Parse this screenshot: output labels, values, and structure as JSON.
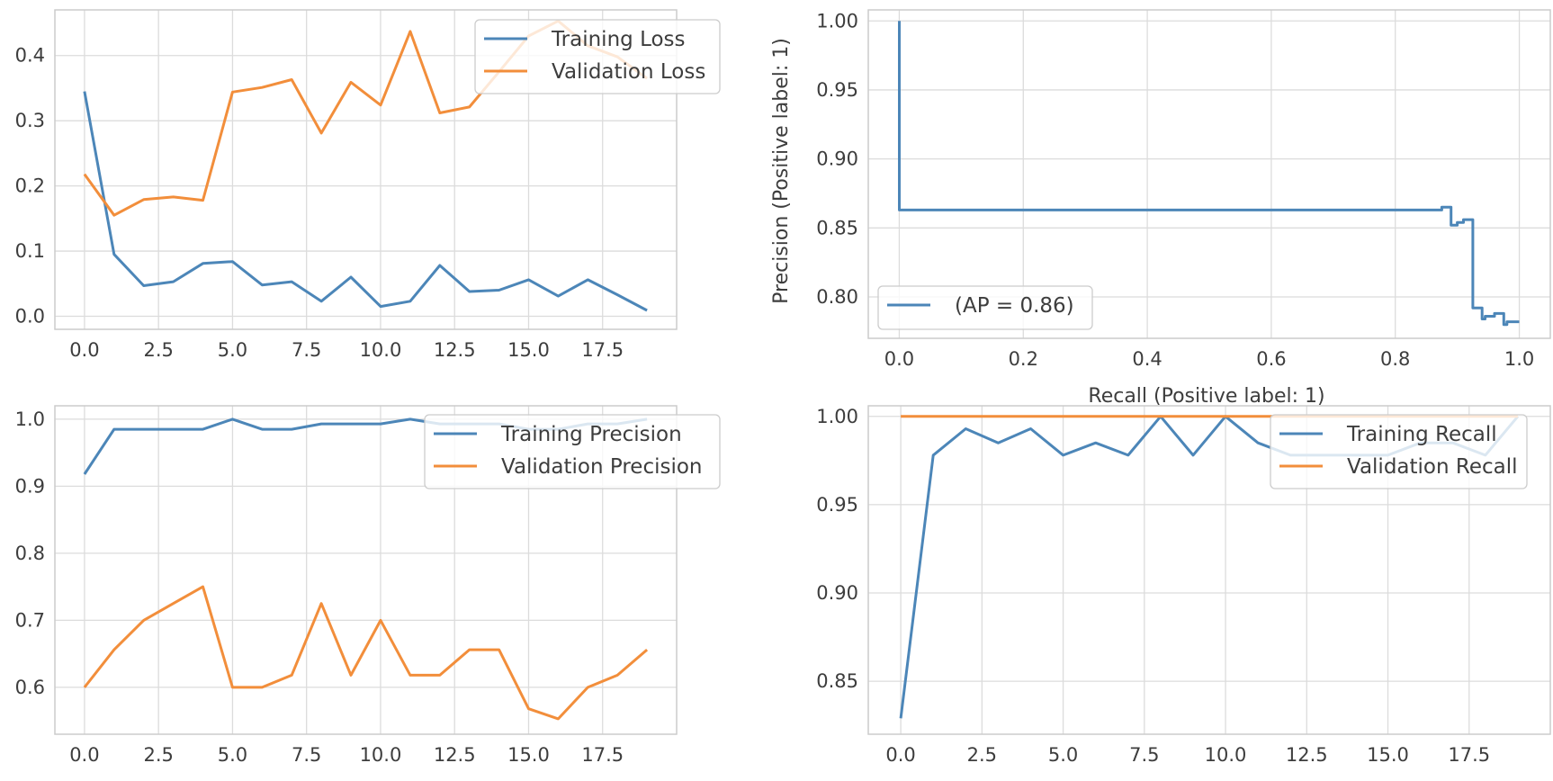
{
  "colors": {
    "blue": "#4c86b8",
    "orange": "#f28e3b",
    "grid": "#dcdcdc",
    "frame": "#cccccc"
  },
  "chart_data": [
    {
      "type": "line",
      "x": [
        0,
        1,
        2,
        3,
        4,
        5,
        6,
        7,
        8,
        9,
        10,
        11,
        12,
        13,
        14,
        15,
        16,
        17,
        18,
        19
      ],
      "xlim": [
        -1,
        20
      ],
      "ylim": [
        -0.02,
        0.47
      ],
      "xticks": [
        "0.0",
        "2.5",
        "5.0",
        "7.5",
        "10.0",
        "12.5",
        "15.0",
        "17.5"
      ],
      "xtick_values": [
        0,
        2.5,
        5,
        7.5,
        10,
        12.5,
        15,
        17.5
      ],
      "yticks": [
        "0.0",
        "0.1",
        "0.2",
        "0.3",
        "0.4"
      ],
      "ytick_values": [
        0,
        0.1,
        0.2,
        0.3,
        0.4
      ],
      "xlabel": "",
      "ylabel": "",
      "grid": true,
      "legend": "top-right",
      "series": [
        {
          "name": "Training Loss",
          "color": "blue",
          "values": [
            0.345,
            0.095,
            0.047,
            0.053,
            0.081,
            0.084,
            0.048,
            0.053,
            0.023,
            0.06,
            0.015,
            0.023,
            0.078,
            0.038,
            0.04,
            0.056,
            0.031,
            0.056,
            0.033,
            0.009
          ]
        },
        {
          "name": "Validation Loss",
          "color": "orange",
          "values": [
            0.218,
            0.155,
            0.179,
            0.183,
            0.178,
            0.344,
            0.351,
            0.363,
            0.281,
            0.359,
            0.324,
            0.437,
            0.312,
            0.321,
            0.375,
            0.43,
            0.453,
            0.415,
            0.398,
            0.365
          ]
        }
      ]
    },
    {
      "type": "line",
      "step": true,
      "xlim": [
        -0.05,
        1.05
      ],
      "ylim": [
        0.77,
        1.008
      ],
      "xticks": [
        "0.0",
        "0.2",
        "0.4",
        "0.6",
        "0.8",
        "1.0"
      ],
      "xtick_values": [
        0,
        0.2,
        0.4,
        0.6,
        0.8,
        1.0
      ],
      "yticks": [
        "0.80",
        "0.85",
        "0.90",
        "0.95",
        "1.00"
      ],
      "ytick_values": [
        0.8,
        0.85,
        0.9,
        0.95,
        1.0
      ],
      "xlabel": "Recall (Positive label: 1)",
      "ylabel": "Precision (Positive label: 1)",
      "grid": true,
      "legend": "bottom-left",
      "series": [
        {
          "name": "(AP = 0.86)",
          "color": "blue",
          "points": [
            [
              0,
              1.0
            ],
            [
              0,
              0.863
            ],
            [
              0.875,
              0.863
            ],
            [
              0.875,
              0.865
            ],
            [
              0.89,
              0.865
            ],
            [
              0.89,
              0.852
            ],
            [
              0.9,
              0.852
            ],
            [
              0.9,
              0.854
            ],
            [
              0.91,
              0.854
            ],
            [
              0.91,
              0.856
            ],
            [
              0.925,
              0.856
            ],
            [
              0.925,
              0.792
            ],
            [
              0.94,
              0.792
            ],
            [
              0.94,
              0.784
            ],
            [
              0.945,
              0.784
            ],
            [
              0.945,
              0.786
            ],
            [
              0.96,
              0.786
            ],
            [
              0.96,
              0.788
            ],
            [
              0.975,
              0.788
            ],
            [
              0.975,
              0.78
            ],
            [
              0.98,
              0.78
            ],
            [
              0.98,
              0.782
            ],
            [
              1.0,
              0.782
            ]
          ]
        }
      ]
    },
    {
      "type": "line",
      "x": [
        0,
        1,
        2,
        3,
        4,
        5,
        6,
        7,
        8,
        9,
        10,
        11,
        12,
        13,
        14,
        15,
        16,
        17,
        18,
        19
      ],
      "xlim": [
        -1,
        20
      ],
      "ylim": [
        0.53,
        1.02
      ],
      "xticks": [
        "0.0",
        "2.5",
        "5.0",
        "7.5",
        "10.0",
        "12.5",
        "15.0",
        "17.5"
      ],
      "xtick_values": [
        0,
        2.5,
        5,
        7.5,
        10,
        12.5,
        15,
        17.5
      ],
      "yticks": [
        "0.6",
        "0.7",
        "0.8",
        "0.9",
        "1.0"
      ],
      "ytick_values": [
        0.6,
        0.7,
        0.8,
        0.9,
        1.0
      ],
      "xlabel": "",
      "ylabel": "",
      "grid": true,
      "legend": "top-right",
      "series": [
        {
          "name": "Training Precision",
          "color": "blue",
          "values": [
            0.918,
            0.985,
            0.985,
            0.985,
            0.985,
            1.0,
            0.985,
            0.985,
            0.993,
            0.993,
            0.993,
            1.0,
            0.993,
            0.993,
            0.993,
            0.985,
            0.985,
            0.993,
            0.993,
            1.0
          ]
        },
        {
          "name": "Validation Precision",
          "color": "orange",
          "values": [
            0.6,
            0.656,
            0.7,
            0.725,
            0.75,
            0.6,
            0.6,
            0.618,
            0.725,
            0.618,
            0.7,
            0.618,
            0.618,
            0.656,
            0.656,
            0.568,
            0.553,
            0.6,
            0.618,
            0.656
          ]
        }
      ]
    },
    {
      "type": "line",
      "x": [
        0,
        1,
        2,
        3,
        4,
        5,
        6,
        7,
        8,
        9,
        10,
        11,
        12,
        13,
        14,
        15,
        16,
        17,
        18,
        19
      ],
      "xlim": [
        -1,
        20
      ],
      "ylim": [
        0.82,
        1.006
      ],
      "xticks": [
        "0.0",
        "2.5",
        "5.0",
        "7.5",
        "10.0",
        "12.5",
        "15.0",
        "17.5"
      ],
      "xtick_values": [
        0,
        2.5,
        5,
        7.5,
        10,
        12.5,
        15,
        17.5
      ],
      "yticks": [
        "0.85",
        "0.90",
        "0.95",
        "1.00"
      ],
      "ytick_values": [
        0.85,
        0.9,
        0.95,
        1.0
      ],
      "xlabel": "",
      "ylabel": "",
      "grid": true,
      "legend": "top-right",
      "series": [
        {
          "name": "Training Recall",
          "color": "blue",
          "values": [
            0.829,
            0.978,
            0.993,
            0.985,
            0.993,
            0.978,
            0.985,
            0.978,
            1.0,
            0.978,
            1.0,
            0.985,
            0.978,
            0.978,
            0.978,
            0.978,
            0.985,
            0.985,
            0.978,
            1.0
          ]
        },
        {
          "name": "Validation Recall",
          "color": "orange",
          "values": [
            1.0,
            1.0,
            1.0,
            1.0,
            1.0,
            1.0,
            1.0,
            1.0,
            1.0,
            1.0,
            1.0,
            1.0,
            1.0,
            1.0,
            1.0,
            1.0,
            1.0,
            1.0,
            1.0,
            1.0
          ]
        }
      ]
    }
  ]
}
